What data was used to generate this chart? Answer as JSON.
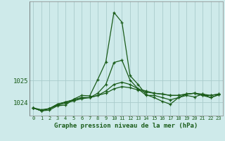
{
  "title": "Graphe pression niveau de la mer (hPa)",
  "background_color": "#ceeaea",
  "grid_color": "#aacccc",
  "line_color": "#1a5c1a",
  "marker_color": "#1a5c1a",
  "xlim": [
    -0.5,
    23.5
  ],
  "ylim": [
    1023.4,
    1028.6
  ],
  "yticks": [
    1024,
    1025
  ],
  "ytick_labels": [
    "1024",
    "1025"
  ],
  "xtick_labels": [
    "0",
    "1",
    "2",
    "3",
    "4",
    "5",
    "6",
    "7",
    "8",
    "9",
    "10",
    "11",
    "12",
    "13",
    "14",
    "15",
    "16",
    "17",
    "18",
    "19",
    "20",
    "21",
    "22",
    "23"
  ],
  "series": [
    [
      1023.75,
      1023.62,
      1023.65,
      1023.85,
      1023.88,
      1024.15,
      1024.32,
      1024.3,
      1025.05,
      1025.85,
      1028.1,
      1027.65,
      1025.22,
      1024.82,
      1024.35,
      1024.22,
      1024.05,
      1023.92,
      1024.22,
      1024.32,
      1024.25,
      1024.38,
      1024.22,
      1024.35
    ],
    [
      1023.75,
      1023.62,
      1023.72,
      1023.92,
      1024.02,
      1024.12,
      1024.22,
      1024.22,
      1024.42,
      1024.82,
      1025.82,
      1025.92,
      1025.02,
      1024.62,
      1024.32,
      1024.32,
      1024.22,
      1024.12,
      1024.22,
      1024.38,
      1024.42,
      1024.32,
      1024.22,
      1024.35
    ],
    [
      1023.75,
      1023.62,
      1023.72,
      1023.92,
      1024.02,
      1024.12,
      1024.22,
      1024.22,
      1024.32,
      1024.52,
      1024.82,
      1024.92,
      1024.82,
      1024.62,
      1024.52,
      1024.42,
      1024.38,
      1024.32,
      1024.32,
      1024.38,
      1024.42,
      1024.32,
      1024.32,
      1024.38
    ],
    [
      1023.75,
      1023.67,
      1023.72,
      1023.87,
      1023.97,
      1024.07,
      1024.17,
      1024.22,
      1024.32,
      1024.42,
      1024.62,
      1024.72,
      1024.67,
      1024.57,
      1024.47,
      1024.42,
      1024.38,
      1024.32,
      1024.32,
      1024.38,
      1024.42,
      1024.38,
      1024.32,
      1024.38
    ]
  ]
}
